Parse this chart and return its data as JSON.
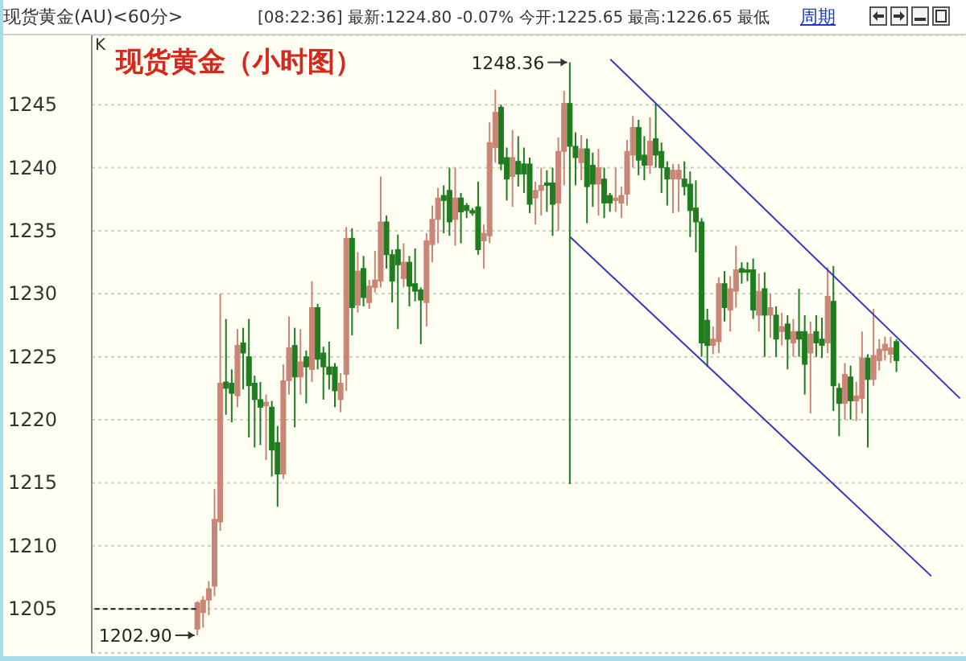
{
  "chart_data": {
    "type": "candlestick",
    "title": "现货黄金（小时图）",
    "annotations": [
      "现货黄金(AU)<60分>",
      "[08:22:36] 最新:1224.80 -0.07% 今开:1225.65 最高:1226.65 最低",
      "周期",
      "K",
      "1248.36",
      "1202.90"
    ],
    "categories": [
      null,
      null,
      null,
      null,
      null,
      null,
      null,
      null,
      null,
      null,
      null,
      null,
      null,
      null,
      null,
      null,
      null,
      null,
      null,
      null,
      null,
      null,
      null,
      null,
      null,
      null,
      null,
      null,
      null,
      null,
      null,
      null,
      null,
      null,
      null,
      null,
      null,
      null,
      null,
      null,
      null,
      null,
      null,
      null,
      null,
      null,
      null,
      null,
      null,
      null,
      null,
      null,
      null,
      null,
      null,
      null,
      null,
      null,
      null,
      null,
      null,
      null,
      null,
      null,
      null,
      null,
      null,
      null,
      null,
      null,
      null,
      null,
      null,
      null,
      null,
      null,
      null,
      null,
      null,
      null,
      null,
      null,
      null,
      null,
      null,
      null,
      null,
      null,
      null,
      null,
      null,
      null,
      null,
      null,
      null,
      null,
      null,
      null,
      null,
      null,
      null,
      null,
      null,
      null,
      null,
      null,
      null,
      null,
      null,
      null,
      null,
      null,
      null,
      null,
      null,
      null,
      null,
      null,
      null,
      null,
      null,
      null,
      null,
      null,
      null,
      null,
      null,
      null,
      null,
      null,
      null,
      null,
      null,
      null,
      null,
      null,
      null,
      null,
      null,
      null,
      null,
      null,
      null,
      null,
      null,
      null,
      null,
      null,
      null,
      null,
      null,
      null
    ],
    "ohlc": [
      null,
      null,
      null,
      null,
      null,
      null,
      null,
      null,
      null,
      null,
      null,
      null,
      null,
      null,
      null,
      null,
      null,
      null,
      [
        1203.4,
        1205.6,
        1202.9,
        1205.5
      ],
      [
        1204.7,
        1206,
        1203.5,
        1205.7
      ],
      [
        1205.7,
        1207.2,
        1204.5,
        1206.6
      ],
      [
        1206.8,
        1214.5,
        1206,
        1212.1
      ],
      [
        1211.9,
        1230,
        1211.2,
        1222.9
      ],
      [
        1223,
        1228,
        1220.4,
        1222.5
      ],
      [
        1222.9,
        1224,
        1219.8,
        1222.1
      ],
      [
        1221.9,
        1227.2,
        1221,
        1225.9
      ],
      [
        1226.1,
        1227.3,
        1222.4,
        1225.3
      ],
      [
        1225,
        1228,
        1218.6,
        1222.7
      ],
      [
        1222.9,
        1223.5,
        1217.8,
        1221.6
      ],
      [
        1221.6,
        1223,
        1218,
        1221
      ],
      [
        1221.1,
        1222,
        1216.8,
        1221.4
      ],
      [
        1221,
        1221.5,
        1215.5,
        1217.6
      ],
      [
        1218.2,
        1219.5,
        1213.1,
        1215.7
      ],
      [
        1215.7,
        1224.4,
        1215.3,
        1223.1
      ],
      [
        1223.1,
        1228.2,
        1222,
        1225.7
      ],
      [
        1225.9,
        1227.3,
        1219.4,
        1223.4
      ],
      [
        1223.4,
        1227.2,
        1222,
        1224.6
      ],
      [
        1225,
        1225.5,
        1221.3,
        1224.2
      ],
      [
        1224,
        1231,
        1223,
        1228.9
      ],
      [
        1228.9,
        1229.2,
        1224,
        1224.8
      ],
      [
        1225.3,
        1225.8,
        1221.6,
        1224.2
      ],
      [
        1224.2,
        1226.2,
        1222.4,
        1223.6
      ],
      [
        1224.2,
        1224.5,
        1221,
        1222.3
      ],
      [
        1221.6,
        1223.7,
        1220.6,
        1222.9
      ],
      [
        1223.6,
        1235.3,
        1222.3,
        1234.4
      ],
      [
        1234.4,
        1235.2,
        1226.7,
        1228.9
      ],
      [
        1229.1,
        1233.3,
        1228.5,
        1231.8
      ],
      [
        1232,
        1233,
        1229,
        1229.7
      ],
      [
        1229.3,
        1231.1,
        1228.8,
        1230.6
      ],
      [
        1230.5,
        1233.4,
        1230.1,
        1231.1
      ],
      [
        1231,
        1239.3,
        1230.5,
        1235.7
      ],
      [
        1235.7,
        1236.2,
        1232,
        1233.1
      ],
      [
        1233.1,
        1233.5,
        1229.3,
        1231
      ],
      [
        1233.5,
        1234.7,
        1227.2,
        1232.3
      ],
      [
        1231.2,
        1234,
        1230.5,
        1232.5
      ],
      [
        1232.5,
        1233,
        1229,
        1230.6
      ],
      [
        1230.8,
        1233.6,
        1229.4,
        1230.2
      ],
      [
        1230.3,
        1230.5,
        1226,
        1229.5
      ],
      [
        1229.3,
        1234.8,
        1227.4,
        1234.2
      ],
      [
        1233.9,
        1237,
        1232.5,
        1235.9
      ],
      [
        1235.9,
        1238.4,
        1234,
        1237.6
      ],
      [
        1237.8,
        1238.6,
        1234.8,
        1237.4
      ],
      [
        1238.2,
        1240,
        1234.6,
        1235.7
      ],
      [
        1235.9,
        1240,
        1233.8,
        1237.6
      ],
      [
        1237.6,
        1238,
        1234,
        1236.5
      ],
      [
        1237,
        1237.2,
        1236,
        1236.6
      ],
      [
        1236.6,
        1236.8,
        1236.2,
        1236.4
      ],
      [
        1236.9,
        1238.9,
        1233.1,
        1233.5
      ],
      [
        1234.2,
        1235.5,
        1232,
        1234.8
      ],
      [
        1234.6,
        1243.6,
        1234,
        1242
      ],
      [
        1241.6,
        1246.2,
        1240.4,
        1244.4
      ],
      [
        1244.8,
        1245,
        1239.8,
        1240.3
      ],
      [
        1240.8,
        1241.6,
        1237.4,
        1239.1
      ],
      [
        1239.3,
        1243,
        1236.9,
        1240.8
      ],
      [
        1240.5,
        1242.5,
        1238.5,
        1239.5
      ],
      [
        1240.3,
        1241.6,
        1238,
        1239.5
      ],
      [
        1240.3,
        1240.8,
        1236.4,
        1237.1
      ],
      [
        1237.6,
        1238.9,
        1235.5,
        1238.2
      ],
      [
        1238.2,
        1240,
        1236.2,
        1238.6
      ],
      [
        1238.8,
        1239.8,
        1236.5,
        1238.6
      ],
      [
        1238.8,
        1240,
        1234.6,
        1237.1
      ],
      [
        1237.2,
        1242.4,
        1235,
        1241.3
      ],
      [
        1241.3,
        1246.1,
        1238.6,
        1245.1
      ],
      [
        1245.1,
        1248.36,
        1214.9,
        1241.7
      ],
      [
        1241.7,
        1242.8,
        1238.6,
        1240.8
      ],
      [
        1240.4,
        1242.6,
        1239,
        1241.5
      ],
      [
        1241.5,
        1242.3,
        1235.6,
        1238.5
      ],
      [
        1240.2,
        1241.2,
        1236.9,
        1238.7
      ],
      [
        1238.7,
        1241.5,
        1236.2,
        1240
      ],
      [
        1239.1,
        1240,
        1236,
        1237.2
      ],
      [
        1237.8,
        1238,
        1236.5,
        1237.2
      ],
      [
        1237.4,
        1240,
        1236.5,
        1237.6
      ],
      [
        1237.2,
        1238.5,
        1236,
        1237.8
      ],
      [
        1237.9,
        1242.2,
        1237,
        1241.3
      ],
      [
        1241,
        1244.1,
        1240,
        1243.2
      ],
      [
        1243.2,
        1243.8,
        1239.4,
        1240.6
      ],
      [
        1241,
        1242.5,
        1239,
        1240.2
      ],
      [
        1240.2,
        1244,
        1239.5,
        1242.1
      ],
      [
        1242.3,
        1245.1,
        1240,
        1241
      ],
      [
        1241.3,
        1242,
        1238,
        1240
      ],
      [
        1240,
        1240.5,
        1237,
        1239.1
      ],
      [
        1239.1,
        1240.3,
        1236.4,
        1239.8
      ],
      [
        1239.1,
        1240.3,
        1236.5,
        1239.8
      ],
      [
        1239.1,
        1240.5,
        1237.8,
        1238.5
      ],
      [
        1238.7,
        1239.7,
        1234.5,
        1236.6
      ],
      [
        1236.8,
        1239,
        1233.3,
        1235.7
      ],
      [
        1235.7,
        1236,
        1225,
        1226.1
      ],
      [
        1227.9,
        1228.8,
        1224.2,
        1225.9
      ],
      [
        1225.9,
        1227.4,
        1225.2,
        1226.4
      ],
      [
        1226.2,
        1231.3,
        1225.3,
        1230.8
      ],
      [
        1230.8,
        1231.8,
        1227.8,
        1228.9
      ],
      [
        1228.7,
        1231.4,
        1227,
        1230.4
      ],
      [
        1230.2,
        1233.8,
        1228.9,
        1231.9
      ],
      [
        1232,
        1232.5,
        1230.8,
        1231.7
      ],
      [
        1231.9,
        1232.5,
        1231,
        1231.7
      ],
      [
        1231.9,
        1232.8,
        1228,
        1228.7
      ],
      [
        1228.3,
        1231.6,
        1227,
        1230.2
      ],
      [
        1230.4,
        1231.7,
        1225,
        1228.3
      ],
      [
        1228.3,
        1230,
        1226.5,
        1228.9
      ],
      [
        1228.3,
        1229,
        1225,
        1226.4
      ],
      [
        1227,
        1228.5,
        1225.9,
        1227.4
      ],
      [
        1227.6,
        1228.3,
        1224,
        1226.4
      ],
      [
        1226.1,
        1228,
        1225,
        1227
      ],
      [
        1227,
        1230.4,
        1225,
        1226.4
      ],
      [
        1227,
        1228.3,
        1222,
        1224.4
      ],
      [
        1225.3,
        1227.8,
        1220.5,
        1226.8
      ],
      [
        1227,
        1228.3,
        1225,
        1226.1
      ],
      [
        1226.4,
        1228.1,
        1224.9,
        1225.9
      ],
      [
        1226.1,
        1232.1,
        1225.3,
        1229.8
      ],
      [
        1229.4,
        1232.2,
        1220.7,
        1222.7
      ],
      [
        1222.5,
        1222.9,
        1218.7,
        1221.3
      ],
      [
        1221.3,
        1224.5,
        1220,
        1223.6
      ],
      [
        1223.4,
        1224.3,
        1220,
        1221.5
      ],
      [
        1221.5,
        1223,
        1219.9,
        1221.9
      ],
      [
        1221.7,
        1227,
        1220.5,
        1224.9
      ],
      [
        1224.9,
        1225.2,
        1217.8,
        1223.2
      ],
      [
        1223.2,
        1228.8,
        1222.7,
        1225.1
      ],
      [
        1224.7,
        1226.4,
        1223.9,
        1225.6
      ],
      [
        1225.5,
        1226.6,
        1224.7,
        1226
      ],
      [
        1225.2,
        1226.6,
        1224.5,
        1225.7
      ],
      [
        1226.2,
        1226.4,
        1223.8,
        1224.7
      ],
      null,
      null,
      null,
      null,
      null,
      null,
      null,
      null,
      null,
      null,
      null
    ],
    "colors": [
      null,
      null,
      null,
      null,
      null,
      null,
      null,
      null,
      null,
      null,
      null,
      null,
      null,
      null,
      null,
      null,
      null,
      null,
      "#c98576",
      "#c98576",
      "#c98576",
      "#c98576",
      "#c98576",
      "#1f7d1f",
      "#1f7d1f",
      "#c98576",
      "#1f7d1f",
      "#1f7d1f",
      "#1f7d1f",
      "#1f7d1f",
      "#c98576",
      "#1f7d1f",
      "#1f7d1f",
      "#c98576",
      "#c98576",
      "#1f7d1f",
      "#c98576",
      "#1f7d1f",
      "#c98576",
      "#1f7d1f",
      "#1f7d1f",
      "#1f7d1f",
      "#1f7d1f",
      "#c98576",
      "#c98576",
      "#1f7d1f",
      "#c98576",
      "#1f7d1f",
      "#c98576",
      "#c98576",
      "#c98576",
      "#1f7d1f",
      "#1f7d1f",
      "#1f7d1f",
      "#c98576",
      "#1f7d1f",
      "#1f7d1f",
      "#1f7d1f",
      "#c98576",
      "#c98576",
      "#c98576",
      "#1f7d1f",
      "#1f7d1f",
      "#c98576",
      "#1f7d1f",
      "#1f7d1f",
      "#1f7d1f",
      "#1f7d1f",
      "#c98576",
      "#c98576",
      "#c98576",
      "#1f7d1f",
      "#1f7d1f",
      "#c98576",
      "#1f7d1f",
      "#1f7d1f",
      "#1f7d1f",
      "#c98576",
      "#c98576",
      "#1f7d1f",
      "#1f7d1f",
      "#c98576",
      "#c98576",
      "#1f7d1f",
      "#1f7d1f",
      "#c98576",
      "#1f7d1f",
      "#1f7d1f",
      "#c98576",
      "#1f7d1f",
      "#1f7d1f",
      "#c98576",
      "#c98576",
      "#c98576",
      "#c98576",
      "#1f7d1f",
      "#1f7d1f",
      "#c98576",
      "#1f7d1f",
      "#1f7d1f",
      "#1f7d1f",
      "#c98576",
      "#c98576",
      "#1f7d1f",
      "#1f7d1f",
      "#1f7d1f",
      "#1f7d1f",
      "#1f7d1f",
      "#c98576",
      "#c98576",
      "#1f7d1f",
      "#c98576",
      "#c98576",
      "#1f7d1f",
      "#1f7d1f",
      "#1f7d1f",
      "#c98576",
      "#1f7d1f",
      "#c98576",
      "#1f7d1f",
      "#c98576",
      "#1f7d1f",
      "#c98576",
      "#1f7d1f",
      "#1f7d1f",
      "#c98576",
      "#1f7d1f",
      "#1f7d1f",
      "#c98576",
      "#1f7d1f",
      "#1f7d1f",
      "#c98576",
      "#1f7d1f",
      "#c98576",
      "#c98576",
      "#1f7d1f",
      "#c98576",
      "#c98576",
      "#c98576",
      "#c98576",
      "#1f7d1f",
      null,
      null,
      null,
      null,
      null,
      null,
      null,
      null,
      null,
      null,
      null
    ],
    "series": [
      {
        "type": "line",
        "color": "#1a1a1a",
        "line_style": "dashed",
        "values": [
          1205,
          null,
          null,
          null,
          null,
          null,
          null,
          null,
          null,
          null,
          null,
          null,
          null,
          null,
          null,
          null,
          null,
          null,
          1205,
          null,
          null,
          null,
          null,
          null,
          null,
          null,
          null,
          null,
          null,
          null,
          null,
          null,
          null,
          null,
          null,
          null,
          null,
          null,
          null,
          null,
          null,
          null,
          null,
          null,
          null,
          null,
          null,
          null,
          null,
          null,
          null,
          null,
          null,
          null,
          null,
          null,
          null,
          null,
          null,
          null,
          null,
          null,
          null,
          null,
          null,
          null,
          null,
          null,
          null,
          null,
          null,
          null,
          null,
          null,
          null,
          null,
          null,
          null,
          null,
          null,
          null,
          null,
          null,
          null,
          null,
          null,
          null,
          null,
          null,
          null,
          null,
          null,
          null,
          null,
          null,
          null,
          null,
          null,
          null,
          null,
          null,
          null,
          null,
          null,
          null,
          null,
          null,
          null,
          null,
          null,
          null,
          null,
          null,
          null,
          null,
          null,
          null,
          null,
          null,
          null,
          null,
          null,
          null,
          null,
          null,
          null,
          null,
          null,
          null,
          null,
          null,
          null,
          null,
          null,
          null,
          null,
          null,
          null,
          null,
          null,
          null,
          null,
          null,
          null,
          null,
          null,
          null,
          null,
          null,
          null,
          null,
          null
        ]
      },
      {
        "type": "line",
        "color": "#3535c0",
        "line_style": "solid",
        "values": [
          null,
          null,
          null,
          null,
          null,
          null,
          null,
          null,
          null,
          null,
          null,
          null,
          null,
          null,
          null,
          null,
          null,
          null,
          null,
          null,
          null,
          null,
          null,
          null,
          null,
          null,
          null,
          null,
          null,
          null,
          null,
          null,
          null,
          null,
          null,
          null,
          null,
          null,
          null,
          null,
          null,
          null,
          null,
          null,
          null,
          null,
          null,
          null,
          null,
          null,
          null,
          null,
          null,
          null,
          null,
          null,
          null,
          null,
          null,
          null,
          null,
          null,
          null,
          null,
          null,
          null,
          null,
          null,
          null,
          null,
          null,
          null,
          null,
          null,
          null,
          null,
          null,
          null,
          null,
          null,
          null,
          null,
          null,
          null,
          null,
          null,
          null,
          null,
          null,
          null,
          1248.6,
          null,
          null,
          null,
          null,
          null,
          null,
          null,
          null,
          null,
          null,
          null,
          null,
          null,
          null,
          null,
          null,
          null,
          null,
          null,
          null,
          null,
          null,
          null,
          null,
          null,
          null,
          null,
          null,
          null,
          null,
          null,
          null,
          null,
          null,
          null,
          null,
          null,
          null,
          null,
          null,
          null,
          null,
          null,
          null,
          null,
          null,
          null,
          null,
          null,
          null,
          null,
          null,
          null,
          null,
          null,
          null,
          null,
          null,
          null,
          null,
          1221.7
        ]
      },
      {
        "type": "line",
        "color": "#3535c0",
        "line_style": "solid",
        "values": [
          null,
          null,
          null,
          null,
          null,
          null,
          null,
          null,
          null,
          null,
          null,
          null,
          null,
          null,
          null,
          null,
          null,
          null,
          null,
          null,
          null,
          null,
          null,
          null,
          null,
          null,
          null,
          null,
          null,
          null,
          null,
          null,
          null,
          null,
          null,
          null,
          null,
          null,
          null,
          null,
          null,
          null,
          null,
          null,
          null,
          null,
          null,
          null,
          null,
          null,
          null,
          null,
          null,
          null,
          null,
          null,
          null,
          null,
          null,
          null,
          null,
          null,
          null,
          null,
          null,
          null,
          null,
          null,
          null,
          null,
          null,
          null,
          null,
          null,
          null,
          null,
          null,
          null,
          null,
          null,
          null,
          null,
          null,
          1234.5,
          null,
          null,
          null,
          null,
          null,
          null,
          null,
          null,
          null,
          null,
          null,
          null,
          null,
          null,
          null,
          null,
          null,
          null,
          null,
          null,
          null,
          null,
          null,
          null,
          null,
          null,
          null,
          null,
          null,
          null,
          null,
          null,
          null,
          null,
          null,
          null,
          null,
          null,
          null,
          null,
          null,
          null,
          null,
          null,
          null,
          null,
          null,
          null,
          null,
          null,
          null,
          null,
          null,
          null,
          null,
          null,
          null,
          null,
          null,
          null,
          null,
          null,
          1207.6,
          null,
          null,
          null,
          null,
          null
        ]
      }
    ],
    "ylim": [
      1201.5,
      1250.5
    ],
    "yticks": [
      1205,
      1210,
      1215,
      1220,
      1225,
      1230,
      1235,
      1240,
      1245
    ],
    "grid": "y"
  }
}
